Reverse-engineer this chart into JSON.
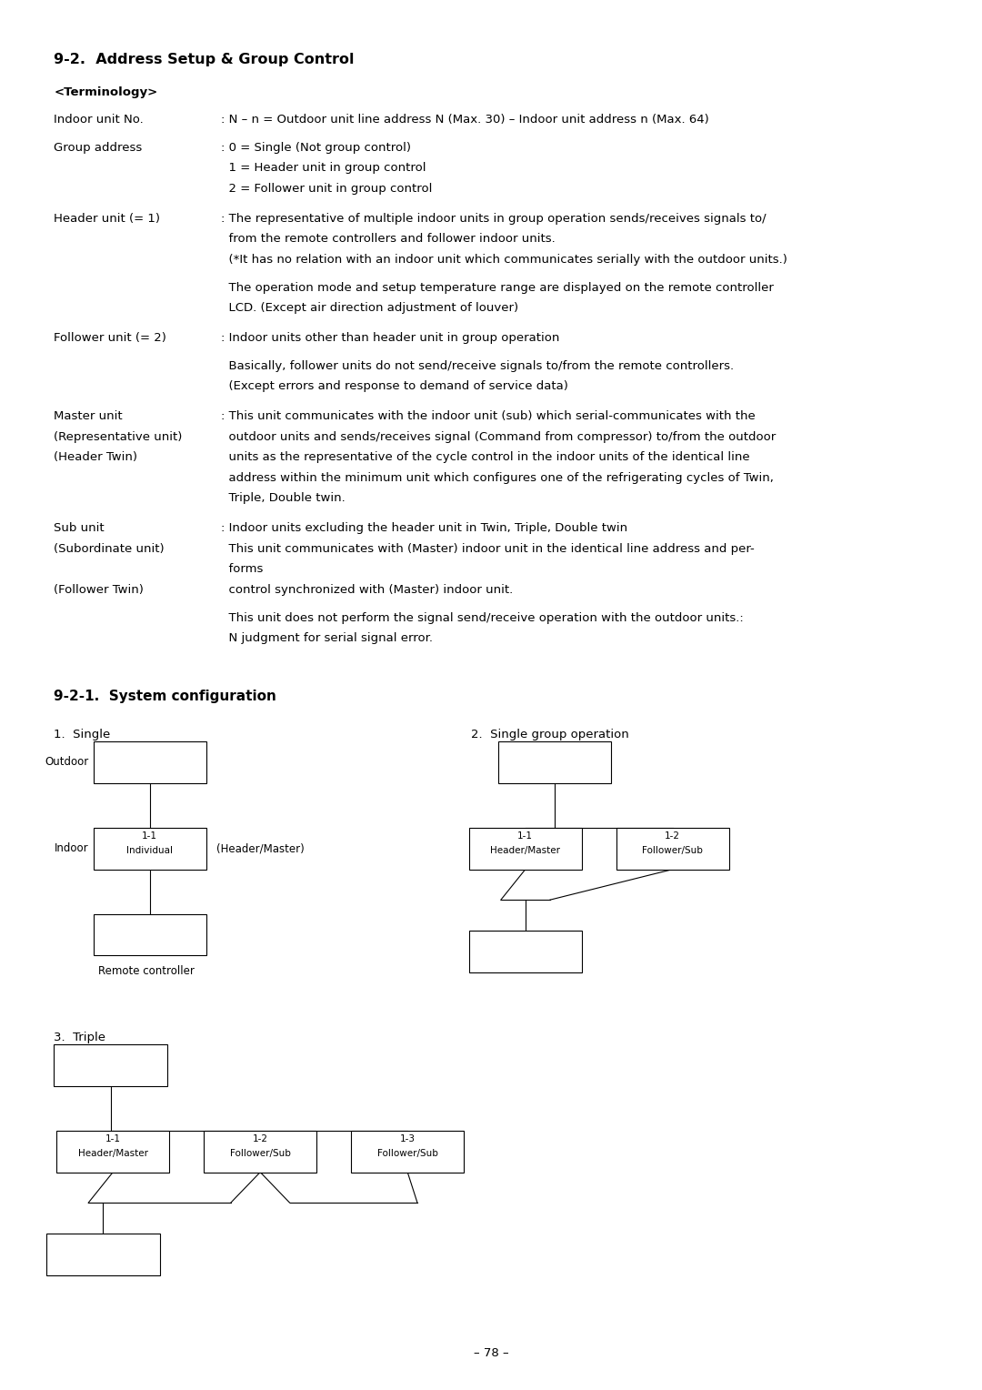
{
  "title_main": "9-2.  Address Setup & Group Control",
  "terminology_header": "<Terminology>",
  "page_number": "– 78 –",
  "bg_color": "#ffffff",
  "text_color": "#000000",
  "box_color": "#000000",
  "font_size_main": 9.5,
  "font_size_title": 11.5,
  "font_size_section": 11.0,
  "label_col": 0.055,
  "text_col": 0.225
}
